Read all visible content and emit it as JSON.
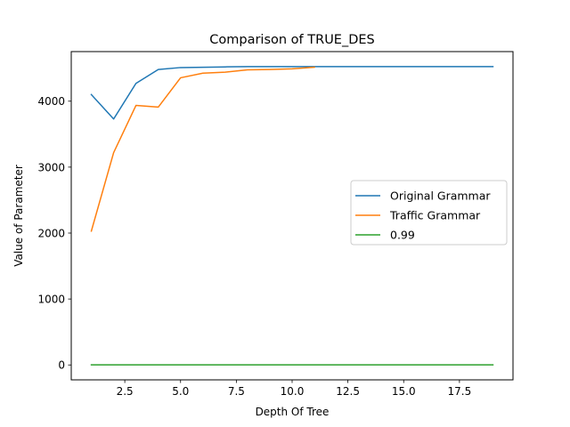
{
  "chart_data": {
    "type": "line",
    "title": "Comparison of TRUE_DES",
    "xlabel": "Depth Of Tree",
    "ylabel": "Value of Parameter",
    "xlim": [
      0.1,
      19.9
    ],
    "ylim": [
      -226,
      4752
    ],
    "xticks": [
      2.5,
      5.0,
      7.5,
      10.0,
      12.5,
      15.0,
      17.5
    ],
    "xtick_labels": [
      "2.5",
      "5.0",
      "7.5",
      "10.0",
      "12.5",
      "15.0",
      "17.5"
    ],
    "yticks": [
      0,
      1000,
      2000,
      3000,
      4000
    ],
    "ytick_labels": [
      "0",
      "1000",
      "2000",
      "3000",
      "4000"
    ],
    "grid": false,
    "legend_position": "center-right",
    "series": [
      {
        "name": "Original Grammar",
        "color": "#1f77b4",
        "x": [
          1,
          2,
          3,
          4,
          5,
          6,
          7,
          8,
          9,
          10,
          11,
          12,
          13,
          14,
          15,
          16,
          17,
          18,
          19
        ],
        "y": [
          4100,
          3730,
          4270,
          4480,
          4510,
          4515,
          4520,
          4525,
          4525,
          4525,
          4525,
          4525,
          4525,
          4525,
          4525,
          4525,
          4525,
          4525,
          4525
        ]
      },
      {
        "name": "Traffic Grammar",
        "color": "#ff7f0e",
        "x": [
          1,
          2,
          3,
          4,
          5,
          6,
          7,
          8,
          9,
          10,
          11
        ],
        "y": [
          2030,
          3220,
          3935,
          3910,
          4355,
          4425,
          4440,
          4475,
          4480,
          4490,
          4515
        ]
      },
      {
        "name": "0.99",
        "color": "#2ca02c",
        "x": [
          1,
          2,
          3,
          4,
          5,
          6,
          7,
          8,
          9,
          10,
          11,
          12,
          13,
          14,
          15,
          16,
          17,
          18,
          19
        ],
        "y": [
          0.99,
          0.99,
          0.99,
          0.99,
          0.99,
          0.99,
          0.99,
          0.99,
          0.99,
          0.99,
          0.99,
          0.99,
          0.99,
          0.99,
          0.99,
          0.99,
          0.99,
          0.99,
          0.99
        ]
      }
    ]
  }
}
